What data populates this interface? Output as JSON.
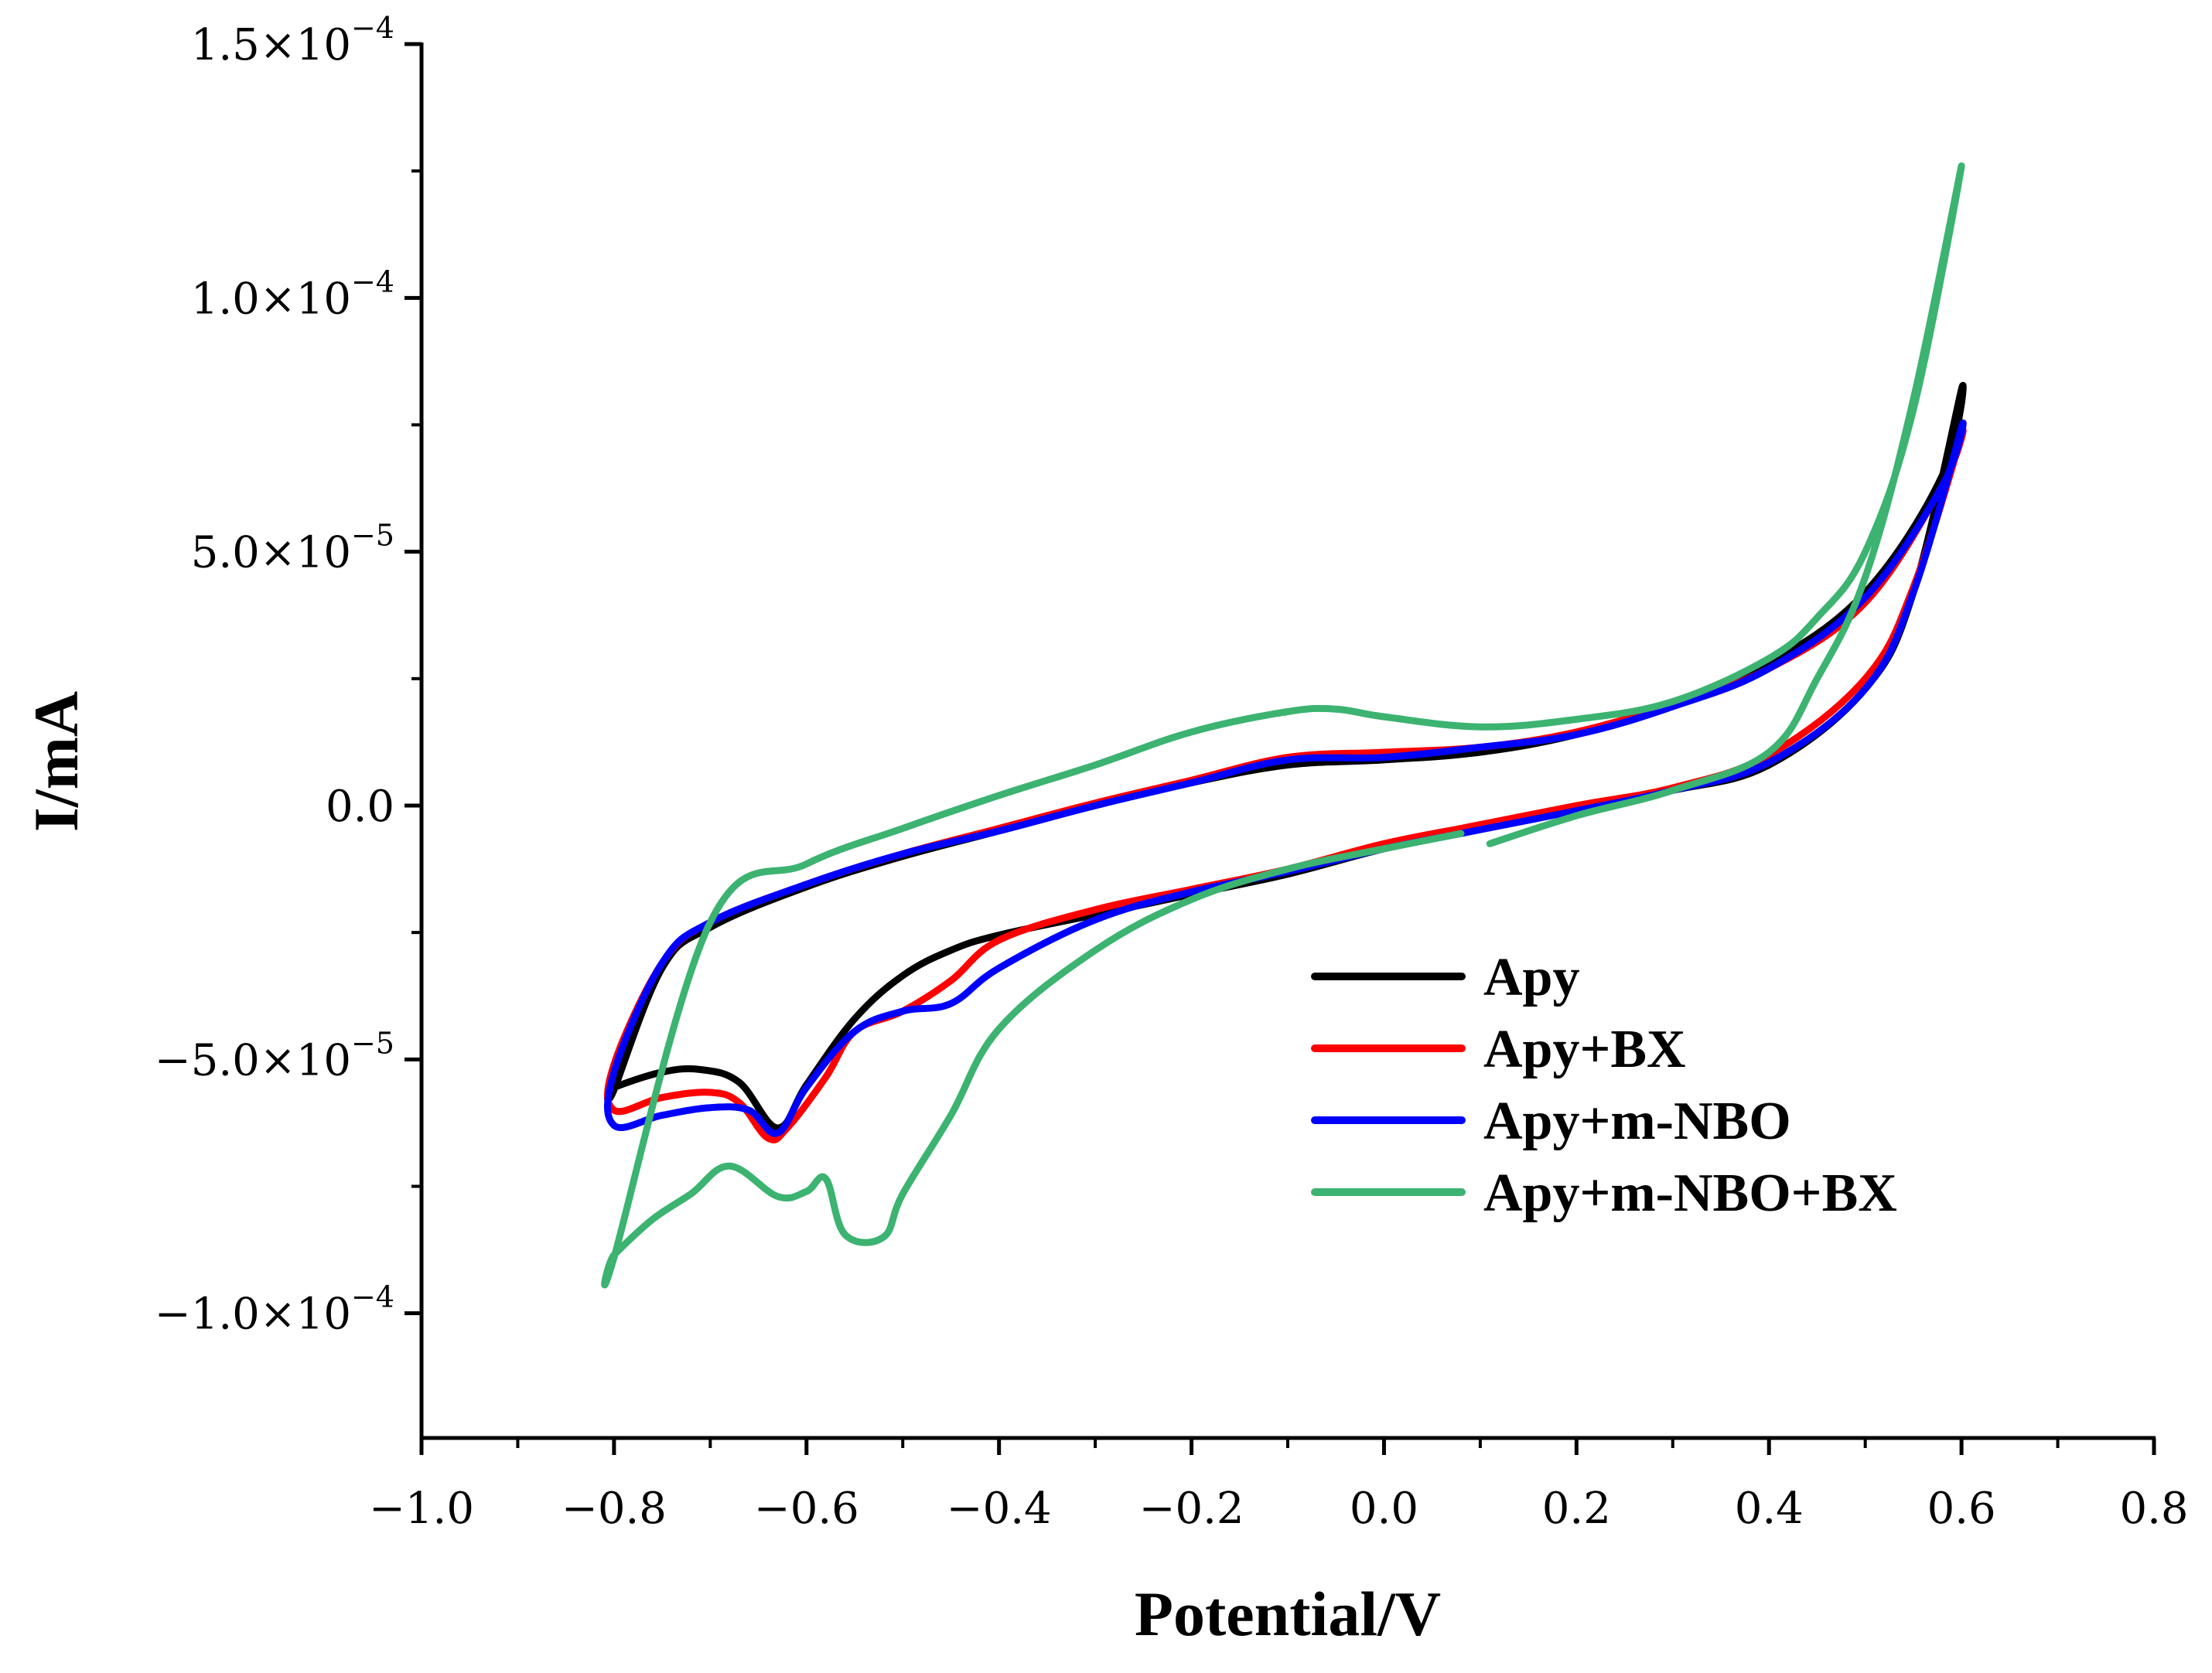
{
  "chart_data": {
    "type": "line",
    "xlabel": "Potential/V",
    "ylabel": "I/mA",
    "xlim": [
      -1.0,
      0.8
    ],
    "ylim": [
      -0.000125,
      0.00015
    ],
    "x_ticks": [
      -1.0,
      -0.8,
      -0.6,
      -0.4,
      -0.2,
      0.0,
      0.2,
      0.4,
      0.6,
      0.8
    ],
    "x_tick_labels": [
      "−1.0",
      "−0.8",
      "−0.6",
      "−0.4",
      "−0.2",
      "0.0",
      "0.2",
      "0.4",
      "0.6",
      "0.8"
    ],
    "y_ticks": [
      -0.0001,
      -5e-05,
      0.0,
      5e-05,
      0.0001,
      0.00015
    ],
    "y_tick_labels": [
      {
        "mantissa": "−1.0",
        "base": "×10",
        "exp": "−4"
      },
      {
        "mantissa": "−5.0",
        "base": "×10",
        "exp": "−5"
      },
      {
        "mantissa": "0.0",
        "base": "",
        "exp": ""
      },
      {
        "mantissa": "5.0",
        "base": "×10",
        "exp": "−5"
      },
      {
        "mantissa": "1.0",
        "base": "×10",
        "exp": "−4"
      },
      {
        "mantissa": "1.5",
        "base": "×10",
        "exp": "−4"
      }
    ],
    "legend_position": "bottom-right",
    "series": [
      {
        "name": "Apy",
        "color": "#000000",
        "x": [
          0.08,
          0.2,
          0.3,
          0.4,
          0.5,
          0.55,
          0.6,
          0.58,
          0.5,
          0.4,
          0.3,
          0.2,
          0.1,
          0.0,
          -0.1,
          -0.2,
          -0.3,
          -0.4,
          -0.5,
          -0.6,
          -0.7,
          -0.75,
          -0.8,
          -0.8,
          -0.75,
          -0.71,
          -0.67,
          -0.63,
          -0.6,
          -0.55,
          -0.5,
          -0.45,
          -0.4,
          -0.3,
          -0.2,
          -0.1,
          0.0,
          0.08
        ],
        "y": [
          -5.5e-06,
          -5e-07,
          3e-06,
          8e-06,
          2.3e-05,
          4.2e-05,
          8.2e-05,
          6.5e-05,
          4.2e-05,
          2.8e-05,
          2e-05,
          1.4e-05,
          1.05e-05,
          9e-06,
          8e-06,
          4.5e-06,
          0.0,
          -5e-06,
          -1e-05,
          -1.6e-05,
          -2.4e-05,
          -3.2e-05,
          -5.6e-05,
          -5.55e-05,
          -5.25e-05,
          -5.2e-05,
          -5.45e-05,
          -6.35e-05,
          -5.5e-05,
          -4.2e-05,
          -3.35e-05,
          -2.85e-05,
          -2.55e-05,
          -2.15e-05,
          -1.75e-05,
          -1.35e-05,
          -8.5e-06,
          -5.5e-06
        ]
      },
      {
        "name": "Apy+BX",
        "color": "#ff0000",
        "x": [
          0.08,
          0.2,
          0.3,
          0.4,
          0.5,
          0.55,
          0.6,
          0.58,
          0.5,
          0.4,
          0.3,
          0.2,
          0.1,
          0.0,
          -0.1,
          -0.2,
          -0.3,
          -0.4,
          -0.5,
          -0.6,
          -0.7,
          -0.75,
          -0.8,
          -0.8,
          -0.75,
          -0.7,
          -0.67,
          -0.64,
          -0.62,
          -0.58,
          -0.55,
          -0.5,
          -0.45,
          -0.4,
          -0.3,
          -0.2,
          -0.1,
          0.0,
          0.08
        ],
        "y": [
          -4.5e-06,
          0.0,
          3.5e-06,
          1e-05,
          2.5e-05,
          4.3e-05,
          7.3e-05,
          6.3e-05,
          4e-05,
          2.7e-05,
          2e-05,
          1.45e-05,
          1.15e-05,
          1.05e-05,
          9.5e-06,
          5e-06,
          5e-07,
          -4.5e-06,
          -9.5e-06,
          -1.55e-05,
          -2.3e-05,
          -3.1e-05,
          -5.1e-05,
          -6e-05,
          -5.75e-05,
          -5.65e-05,
          -5.85e-05,
          -6.55e-05,
          -6.35e-05,
          -5.35e-05,
          -4.45e-05,
          -4.05e-05,
          -3.45e-05,
          -2.65e-05,
          -2.05e-05,
          -1.65e-05,
          -1.25e-05,
          -7.5e-06,
          -4.5e-06
        ]
      },
      {
        "name": "Apy+m-NBO",
        "color": "#0000ff",
        "x": [
          0.08,
          0.2,
          0.3,
          0.4,
          0.5,
          0.55,
          0.6,
          0.58,
          0.5,
          0.4,
          0.3,
          0.2,
          0.1,
          0.0,
          -0.1,
          -0.2,
          -0.3,
          -0.4,
          -0.5,
          -0.6,
          -0.7,
          -0.75,
          -0.8,
          -0.8,
          -0.75,
          -0.7,
          -0.66,
          -0.63,
          -0.6,
          -0.55,
          -0.5,
          -0.45,
          -0.4,
          -0.3,
          -0.2,
          -0.1,
          0.0,
          0.08
        ],
        "y": [
          -5.5e-06,
          -1e-06,
          3e-06,
          8.5e-06,
          2.3e-05,
          4.2e-05,
          7.45e-05,
          6.3e-05,
          4.1e-05,
          2.7e-05,
          1.95e-05,
          1.4e-05,
          1.15e-05,
          9.5e-06,
          9e-06,
          4.5e-06,
          0.0,
          -5e-06,
          -9.5e-06,
          -1.55e-05,
          -2.3e-05,
          -3.1e-05,
          -5.25e-05,
          -6.3e-05,
          -6.1e-05,
          -5.95e-05,
          -6e-05,
          -6.45e-05,
          -5.55e-05,
          -4.45e-05,
          -4.05e-05,
          -3.9e-05,
          -3.2e-05,
          -2.25e-05,
          -1.7e-05,
          -1.3e-05,
          -8.5e-06,
          -5.5e-06
        ]
      },
      {
        "name": "Apy+m-NBO+BX",
        "color": "#3cb371",
        "x": [
          0.11,
          0.2,
          0.3,
          0.4,
          0.45,
          0.5,
          0.55,
          0.6,
          0.55,
          0.5,
          0.45,
          0.4,
          0.3,
          0.2,
          0.1,
          0.0,
          -0.05,
          -0.1,
          -0.2,
          -0.3,
          -0.4,
          -0.5,
          -0.6,
          -0.7,
          -0.8,
          -0.8,
          -0.76,
          -0.72,
          -0.68,
          -0.63,
          -0.6,
          -0.58,
          -0.56,
          -0.52,
          -0.5,
          -0.45,
          -0.4,
          -0.3,
          -0.2,
          -0.1,
          0.0,
          0.08
        ],
        "y": [
          -7.5e-06,
          -2e-06,
          3e-06,
          1.05e-05,
          2.5e-05,
          4.5e-05,
          8e-05,
          0.000126,
          7.8e-05,
          5e-05,
          3.7e-05,
          2.9e-05,
          2.05e-05,
          1.7e-05,
          1.55e-05,
          1.75e-05,
          1.9e-05,
          1.85e-05,
          1.45e-05,
          8e-06,
          2e-06,
          -4.5e-06,
          -1.15e-05,
          -2.3e-05,
          -8.9e-05,
          -8.85e-05,
          -8.15e-05,
          -7.65e-05,
          -7.1e-05,
          -7.7e-05,
          -7.6e-05,
          -7.35e-05,
          -8.45e-05,
          -8.5e-05,
          -7.65e-05,
          -6.1e-05,
          -4.4e-05,
          -2.85e-05,
          -1.85e-05,
          -1.25e-05,
          -8.5e-06,
          -5.5e-06
        ]
      }
    ]
  }
}
